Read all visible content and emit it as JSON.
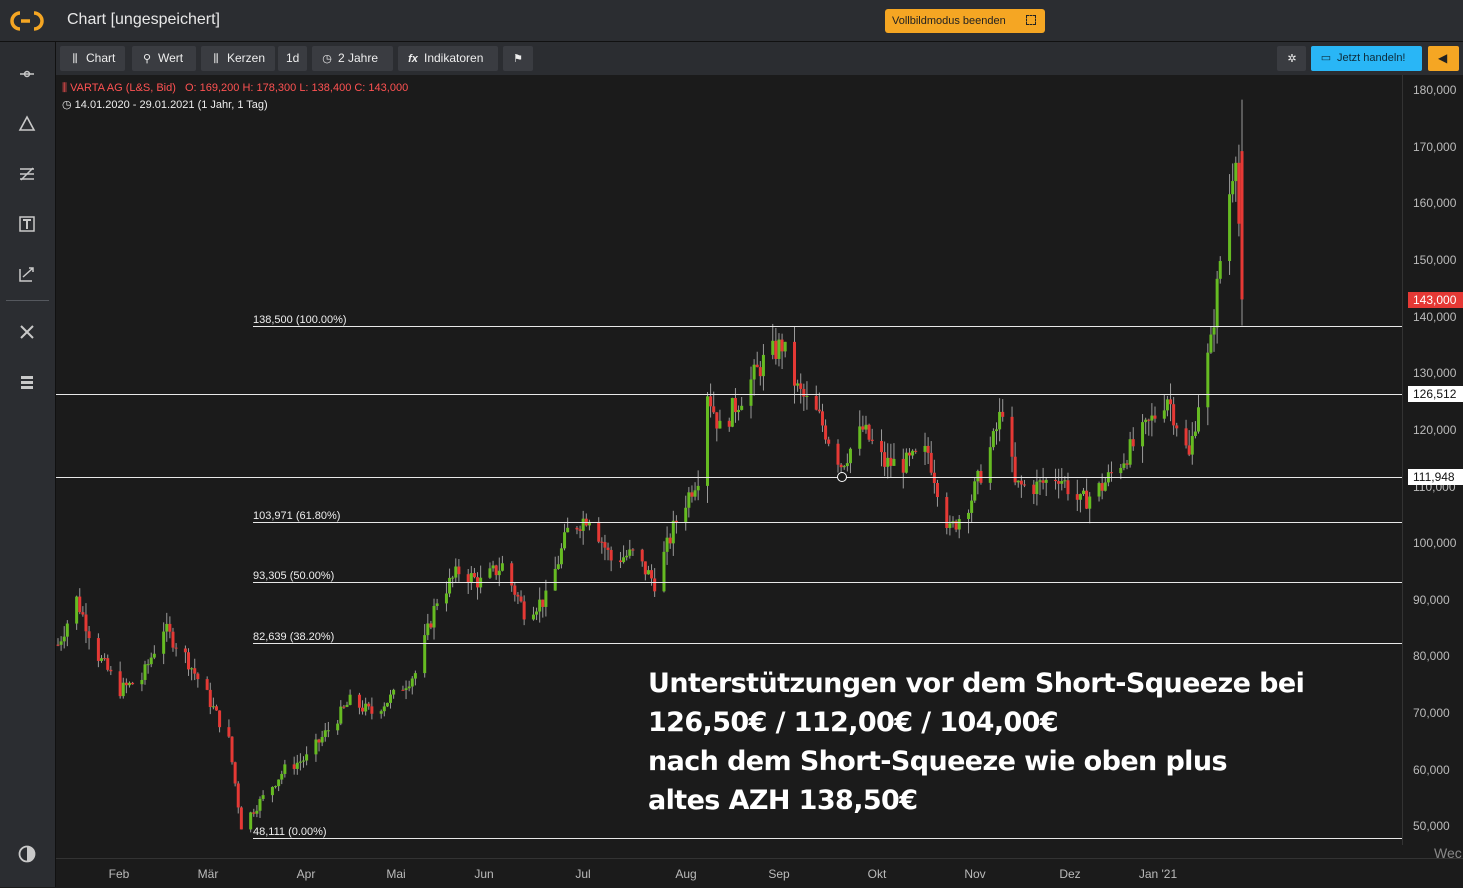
{
  "app": {
    "title": "Chart [ungespeichert]",
    "fullscreen_button": "Vollbildmodus beenden"
  },
  "toolbar": {
    "chart": "Chart",
    "wert": "Wert",
    "kerzen": "Kerzen",
    "interval": "1d",
    "range": "2 Jahre",
    "indicators": "Indikatoren",
    "trade": "Jetzt handeln!"
  },
  "sidebar": {
    "icons": [
      "crosshair-icon",
      "triangle-icon",
      "lines-icon",
      "text-icon",
      "trend-icon",
      "tools-icon",
      "list-icon",
      "contrast-icon"
    ]
  },
  "info": {
    "instrument": "VARTA AG (L&S, Bid)",
    "ohlc": "O: 169,200  H: 178,300  L: 138,400  C: 143,000",
    "period": "14.01.2020 - 29.01.2021   (1 Jahr, 1 Tag)"
  },
  "annotation": [
    "Unterstützungen vor dem Short-Squeeze bei",
    "126,50€ / 112,00€ / 104,00€",
    "nach dem Short-Squeeze wie oben plus",
    "altes AZH 138,50€"
  ],
  "fib_levels": [
    {
      "label": "138,500 (100.00%)",
      "value": 138.5
    },
    {
      "label": "103,971 (61.80%)",
      "value": 103.971
    },
    {
      "label": "93,305 (50.00%)",
      "value": 93.305
    },
    {
      "label": "82,639 (38.20%)",
      "value": 82.639
    },
    {
      "label": "48,111 (0.00%)",
      "value": 48.111
    }
  ],
  "horizontal_lines": [
    {
      "label": "126,512",
      "value": 126.512
    },
    {
      "label": "111,948",
      "value": 111.948
    }
  ],
  "current_price": {
    "label": "143,000",
    "value": 143.0
  },
  "y_ticks": [
    "180,000",
    "170,000",
    "160,000",
    "150,000",
    "140,000",
    "130,000",
    "120,000",
    "110,000",
    "100,000",
    "90,000",
    "80,000",
    "70,000",
    "60,000",
    "50,000"
  ],
  "x_ticks": [
    "Feb",
    "Mär",
    "Apr",
    "Mai",
    "Jun",
    "Jul",
    "Aug",
    "Sep",
    "Okt",
    "Nov",
    "Dez",
    "Jan '21"
  ],
  "x_axis_extra": "Wec",
  "chart_data": {
    "type": "candlestick",
    "title": "VARTA AG (L&S, Bid)",
    "date_range": [
      "14.01.2020",
      "29.01.2021"
    ],
    "last_candle": {
      "open": 169.2,
      "high": 178.3,
      "low": 138.4,
      "close": 143.0
    },
    "ylim": [
      45,
      182
    ],
    "trend": [
      [
        "2020-01-14",
        82
      ],
      [
        "2020-01-20",
        90
      ],
      [
        "2020-01-27",
        80
      ],
      [
        "2020-02-03",
        74
      ],
      [
        "2020-02-10",
        76
      ],
      [
        "2020-02-17",
        85
      ],
      [
        "2020-02-24",
        80
      ],
      [
        "2020-03-02",
        73
      ],
      [
        "2020-03-09",
        65
      ],
      [
        "2020-03-13",
        50
      ],
      [
        "2020-03-20",
        55
      ],
      [
        "2020-03-27",
        60
      ],
      [
        "2020-04-03",
        62
      ],
      [
        "2020-04-10",
        67
      ],
      [
        "2020-04-17",
        72
      ],
      [
        "2020-04-24",
        70
      ],
      [
        "2020-05-01",
        73
      ],
      [
        "2020-05-08",
        77
      ],
      [
        "2020-05-15",
        90
      ],
      [
        "2020-05-22",
        95
      ],
      [
        "2020-05-29",
        93
      ],
      [
        "2020-06-05",
        96
      ],
      [
        "2020-06-12",
        88
      ],
      [
        "2020-06-19",
        90
      ],
      [
        "2020-06-26",
        102
      ],
      [
        "2020-07-03",
        105
      ],
      [
        "2020-07-10",
        97
      ],
      [
        "2020-07-17",
        98
      ],
      [
        "2020-07-24",
        93
      ],
      [
        "2020-07-31",
        104
      ],
      [
        "2020-08-07",
        112
      ],
      [
        "2020-08-10",
        127
      ],
      [
        "2020-08-14",
        120
      ],
      [
        "2020-08-21",
        126
      ],
      [
        "2020-08-28",
        132
      ],
      [
        "2020-09-03",
        135
      ],
      [
        "2020-09-08",
        127
      ],
      [
        "2020-09-15",
        122
      ],
      [
        "2020-09-22",
        114
      ],
      [
        "2020-09-29",
        120
      ],
      [
        "2020-10-06",
        114
      ],
      [
        "2020-10-13",
        114
      ],
      [
        "2020-10-20",
        116
      ],
      [
        "2020-10-27",
        102
      ],
      [
        "2020-11-03",
        108
      ],
      [
        "2020-11-10",
        118
      ],
      [
        "2020-11-13",
        124
      ],
      [
        "2020-11-17",
        110
      ],
      [
        "2020-11-24",
        110
      ],
      [
        "2020-12-01",
        112
      ],
      [
        "2020-12-08",
        107
      ],
      [
        "2020-12-15",
        110
      ],
      [
        "2020-12-22",
        115
      ],
      [
        "2020-12-29",
        120
      ],
      [
        "2021-01-05",
        126
      ],
      [
        "2021-01-12",
        115
      ],
      [
        "2021-01-15",
        125
      ],
      [
        "2021-01-19",
        135
      ],
      [
        "2021-01-22",
        150
      ],
      [
        "2021-01-27",
        170
      ],
      [
        "2021-01-29",
        143
      ]
    ]
  }
}
